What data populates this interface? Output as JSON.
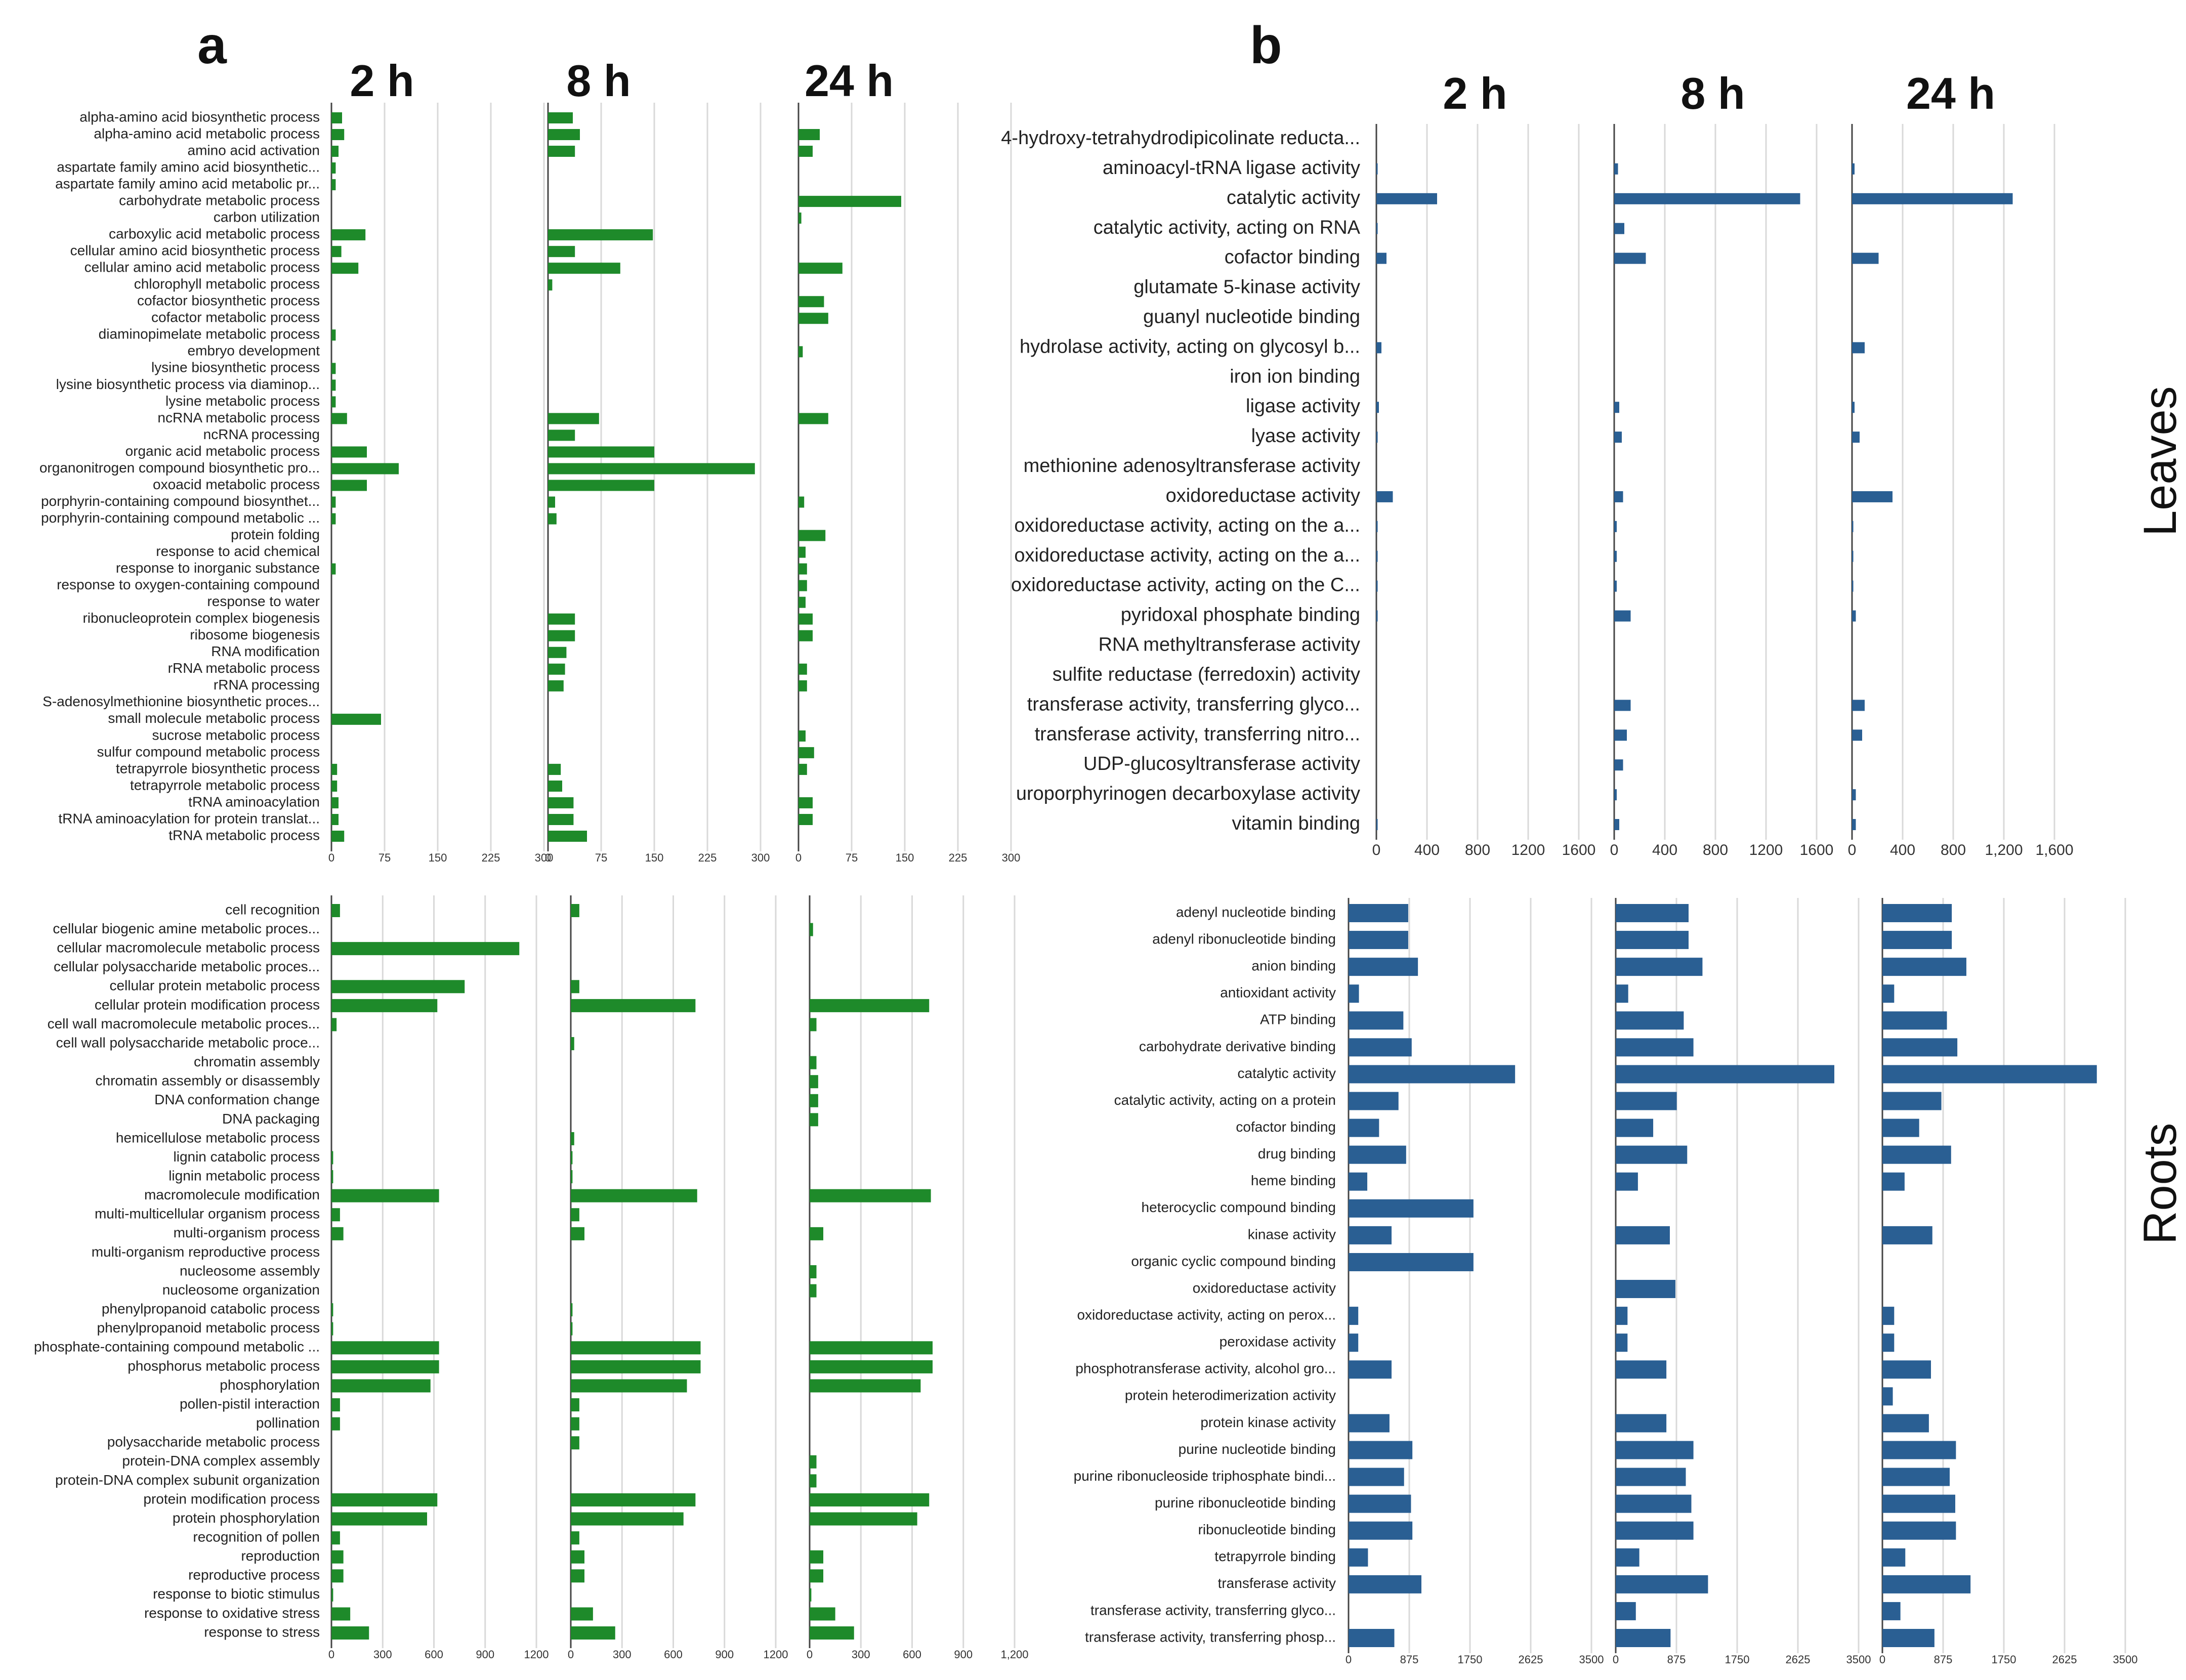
{
  "figure": {
    "panel_a": "a",
    "panel_b": "b",
    "row_leaves": "Leaves",
    "row_roots": "Roots",
    "colors": {
      "panel_a_bar": "#1e8a2a",
      "panel_b_bar": "#2a5f93"
    }
  },
  "chart_data": [
    {
      "type": "bar",
      "orientation": "horizontal",
      "panel": "a",
      "row": "Leaves",
      "categories": [
        "alpha-amino acid biosynthetic process",
        "alpha-amino acid metabolic process",
        "amino acid activation",
        "aspartate family amino acid biosynthetic...",
        "aspartate family amino acid metabolic pr...",
        "carbohydrate metabolic process",
        "carbon utilization",
        "carboxylic acid metabolic process",
        "cellular amino acid biosynthetic process",
        "cellular amino acid metabolic process",
        "chlorophyll metabolic process",
        "cofactor biosynthetic process",
        "cofactor metabolic process",
        "diaminopimelate metabolic process",
        "embryo development",
        "lysine biosynthetic process",
        "lysine biosynthetic process via diaminop...",
        "lysine metabolic process",
        "ncRNA metabolic process",
        "ncRNA processing",
        "organic acid metabolic process",
        "organonitrogen compound biosynthetic pro...",
        "oxoacid metabolic process",
        "porphyrin-containing compound biosynthet...",
        "porphyrin-containing compound metabolic ...",
        "protein folding",
        "response to acid chemical",
        "response to inorganic substance",
        "response to oxygen-containing compound",
        "response to water",
        "ribonucleoprotein complex biogenesis",
        "ribosome biogenesis",
        "RNA modification",
        "rRNA metabolic process",
        "rRNA processing",
        "S-adenosylmethionine biosynthetic proces...",
        "small molecule metabolic process",
        "sucrose metabolic process",
        "sulfur compound metabolic process",
        "tetrapyrrole biosynthetic process",
        "tetrapyrrole metabolic process",
        "tRNA aminoacylation",
        "tRNA aminoacylation for protein translat...",
        "tRNA metabolic process"
      ],
      "xlim": [
        0,
        300
      ],
      "series": [
        {
          "name": "2 h",
          "ticks": [
            "0",
            "75",
            "150",
            "225",
            "300"
          ],
          "values": [
            15,
            18,
            10,
            6,
            6,
            0,
            0,
            48,
            14,
            38,
            0,
            0,
            0,
            6,
            0,
            6,
            6,
            6,
            22,
            0,
            50,
            95,
            50,
            6,
            6,
            0,
            0,
            6,
            0,
            0,
            0,
            0,
            0,
            0,
            0,
            0,
            70,
            0,
            0,
            8,
            8,
            10,
            10,
            18
          ]
        },
        {
          "name": "8 h",
          "ticks": [
            "0",
            "75",
            "150",
            "225",
            "300"
          ],
          "values": [
            35,
            45,
            38,
            0,
            0,
            0,
            0,
            148,
            38,
            102,
            6,
            0,
            0,
            0,
            0,
            0,
            0,
            0,
            72,
            38,
            150,
            292,
            150,
            10,
            12,
            0,
            0,
            0,
            0,
            0,
            38,
            38,
            26,
            24,
            22,
            0,
            0,
            0,
            0,
            18,
            20,
            36,
            36,
            55
          ]
        },
        {
          "name": "24 h",
          "ticks": [
            "0",
            "75",
            "150",
            "225",
            "300"
          ],
          "values": [
            0,
            30,
            20,
            0,
            0,
            145,
            4,
            0,
            0,
            62,
            0,
            36,
            42,
            0,
            6,
            0,
            0,
            0,
            42,
            0,
            0,
            0,
            0,
            8,
            0,
            38,
            10,
            12,
            12,
            10,
            20,
            20,
            0,
            12,
            12,
            0,
            0,
            10,
            22,
            12,
            0,
            20,
            20,
            0
          ]
        }
      ]
    },
    {
      "type": "bar",
      "orientation": "horizontal",
      "panel": "a",
      "row": "Roots",
      "categories": [
        "cell recognition",
        "cellular biogenic amine metabolic proces...",
        "cellular macromolecule metabolic process",
        "cellular polysaccharide metabolic proces...",
        "cellular protein metabolic process",
        "cellular protein modification process",
        "cell wall macromolecule metabolic proces...",
        "cell wall polysaccharide metabolic proce...",
        "chromatin assembly",
        "chromatin assembly or disassembly",
        "DNA conformation change",
        "DNA packaging",
        "hemicellulose metabolic process",
        "lignin catabolic process",
        "lignin metabolic process",
        "macromolecule modification",
        "multi-multicellular organism process",
        "multi-organism process",
        "multi-organism reproductive process",
        "nucleosome assembly",
        "nucleosome organization",
        "phenylpropanoid catabolic process",
        "phenylpropanoid metabolic process",
        "phosphate-containing compound metabolic ...",
        "phosphorus metabolic process",
        "phosphorylation",
        "pollen-pistil interaction",
        "pollination",
        "polysaccharide metabolic process",
        "protein-DNA complex assembly",
        "protein-DNA complex subunit organization",
        "protein modification process",
        "protein phosphorylation",
        "recognition of pollen",
        "reproduction",
        "reproductive process",
        "response to biotic stimulus",
        "response to oxidative stress",
        "response to stress"
      ],
      "xlim": [
        0,
        1200
      ],
      "series": [
        {
          "name": "2 h",
          "ticks": [
            "0",
            "300",
            "600",
            "900",
            "1200"
          ],
          "values": [
            50,
            0,
            1100,
            0,
            780,
            620,
            30,
            0,
            0,
            0,
            0,
            0,
            0,
            10,
            10,
            630,
            50,
            70,
            0,
            0,
            0,
            10,
            10,
            630,
            630,
            580,
            50,
            50,
            0,
            0,
            0,
            620,
            560,
            50,
            70,
            70,
            10,
            110,
            220
          ]
        },
        {
          "name": "8 h",
          "ticks": [
            "0",
            "300",
            "600",
            "900",
            "1200"
          ],
          "values": [
            50,
            0,
            0,
            0,
            50,
            730,
            0,
            20,
            0,
            0,
            0,
            0,
            20,
            10,
            10,
            740,
            50,
            80,
            0,
            0,
            0,
            10,
            10,
            760,
            760,
            680,
            50,
            50,
            50,
            0,
            0,
            730,
            660,
            50,
            80,
            80,
            0,
            130,
            260
          ]
        },
        {
          "name": "24 h",
          "ticks": [
            "0",
            "300",
            "600",
            "900",
            "1,200"
          ],
          "values": [
            0,
            20,
            0,
            0,
            0,
            700,
            40,
            0,
            40,
            50,
            50,
            50,
            0,
            0,
            0,
            710,
            0,
            80,
            0,
            40,
            40,
            0,
            0,
            720,
            720,
            650,
            0,
            0,
            0,
            40,
            40,
            700,
            630,
            0,
            80,
            80,
            10,
            150,
            260
          ]
        }
      ]
    },
    {
      "type": "bar",
      "orientation": "horizontal",
      "panel": "b",
      "row": "Leaves",
      "categories": [
        "4-hydroxy-tetrahydrodipicolinate reducta...",
        "aminoacyl-tRNA ligase activity",
        "catalytic activity",
        "catalytic activity, acting on RNA",
        "cofactor binding",
        "glutamate 5-kinase activity",
        "guanyl nucleotide binding",
        "hydrolase activity, acting on glycosyl b...",
        "iron ion binding",
        "ligase activity",
        "lyase activity",
        "methionine adenosyltransferase activity",
        "oxidoreductase activity",
        "oxidoreductase activity, acting on the a...",
        "oxidoreductase activity, acting on the a...",
        "oxidoreductase activity, acting on the C...",
        "pyridoxal phosphate binding",
        "RNA methyltransferase activity",
        "sulfite reductase (ferredoxin) activity",
        "transferase activity, transferring glyco...",
        "transferase activity, transferring nitro...",
        "UDP-glucosyltransferase activity",
        "uroporphyrinogen decarboxylase activity",
        "vitamin binding"
      ],
      "xlim": [
        0,
        1600
      ],
      "series": [
        {
          "name": "2 h",
          "ticks": [
            "0",
            "400",
            "800",
            "1200",
            "1600"
          ],
          "values": [
            0,
            10,
            480,
            10,
            80,
            0,
            0,
            40,
            0,
            20,
            10,
            0,
            130,
            10,
            10,
            10,
            10,
            0,
            0,
            0,
            0,
            0,
            0,
            10
          ]
        },
        {
          "name": "8 h",
          "ticks": [
            "0",
            "400",
            "800",
            "1200",
            "1600"
          ],
          "values": [
            0,
            30,
            1470,
            80,
            250,
            0,
            0,
            0,
            0,
            40,
            60,
            0,
            70,
            20,
            20,
            20,
            130,
            0,
            0,
            130,
            100,
            70,
            20,
            40
          ]
        },
        {
          "name": "24 h",
          "ticks": [
            "0",
            "400",
            "800",
            "1,200",
            "1,600"
          ],
          "values": [
            0,
            20,
            1270,
            0,
            210,
            0,
            0,
            100,
            0,
            20,
            60,
            0,
            320,
            10,
            10,
            10,
            30,
            0,
            0,
            100,
            80,
            0,
            30,
            30
          ]
        }
      ]
    },
    {
      "type": "bar",
      "orientation": "horizontal",
      "panel": "b",
      "row": "Roots",
      "categories": [
        "adenyl nucleotide binding",
        "adenyl ribonucleotide binding",
        "anion binding",
        "antioxidant activity",
        "ATP binding",
        "carbohydrate derivative binding",
        "catalytic activity",
        "catalytic activity, acting on a protein",
        "cofactor binding",
        "drug binding",
        "heme binding",
        "heterocyclic compound binding",
        "kinase activity",
        "organic cyclic compound binding",
        "oxidoreductase activity",
        "oxidoreductase activity, acting on perox...",
        "peroxidase activity",
        "phosphotransferase activity, alcohol gro...",
        "protein heterodimerization activity",
        "protein kinase activity",
        "purine nucleotide binding",
        "purine ribonucleoside triphosphate bindi...",
        "purine ribonucleotide binding",
        "ribonucleotide binding",
        "tetrapyrrole binding",
        "transferase activity",
        "transferase activity, transferring glyco...",
        "transferase activity, transferring phosp..."
      ],
      "xlim": [
        0,
        3500
      ],
      "series": [
        {
          "name": "2 h",
          "ticks": [
            "0",
            "875",
            "1750",
            "2625",
            "3500"
          ],
          "values": [
            860,
            860,
            1000,
            150,
            790,
            910,
            2400,
            720,
            440,
            830,
            270,
            1800,
            620,
            1800,
            0,
            140,
            140,
            620,
            0,
            590,
            920,
            800,
            900,
            920,
            280,
            1050,
            0,
            660
          ]
        },
        {
          "name": "8 h",
          "ticks": [
            "0",
            "875",
            "1750",
            "2625",
            "3500"
          ],
          "values": [
            1050,
            1050,
            1250,
            180,
            980,
            1120,
            3150,
            880,
            540,
            1030,
            320,
            0,
            780,
            0,
            860,
            170,
            170,
            730,
            0,
            730,
            1120,
            1010,
            1090,
            1120,
            340,
            1330,
            290,
            790
          ]
        },
        {
          "name": "24 h",
          "ticks": [
            "0",
            "875",
            "1750",
            "2625",
            "3500"
          ],
          "values": [
            1000,
            1000,
            1210,
            170,
            930,
            1080,
            3090,
            850,
            530,
            990,
            320,
            0,
            720,
            0,
            0,
            170,
            170,
            700,
            150,
            670,
            1060,
            970,
            1050,
            1060,
            330,
            1270,
            260,
            750
          ]
        }
      ]
    }
  ]
}
